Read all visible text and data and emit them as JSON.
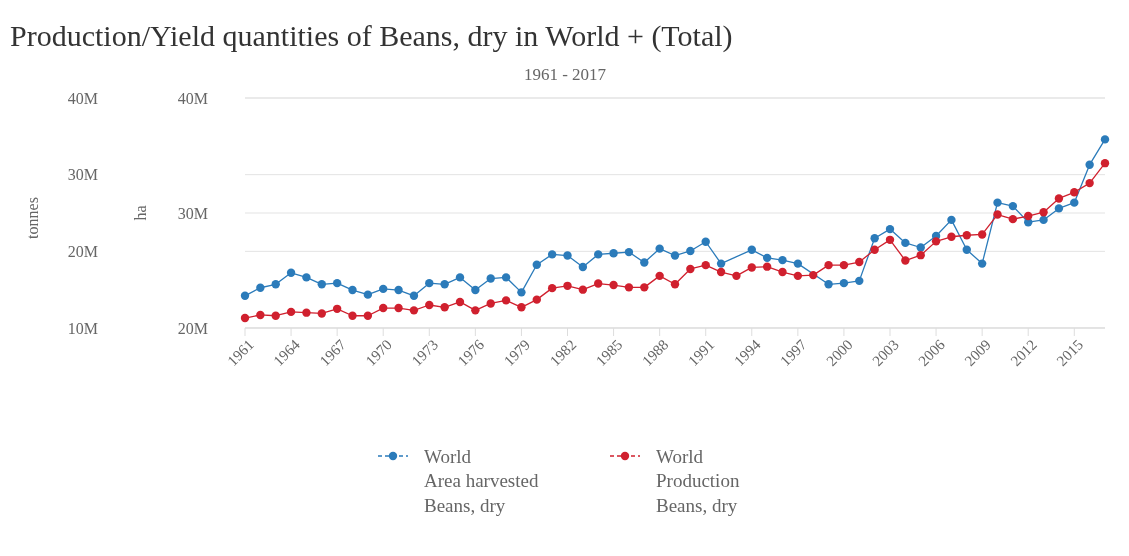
{
  "chart_data": {
    "type": "line",
    "title": "Production/Yield quantities of Beans, dry in World + (Total)",
    "subtitle": "1961 - 2017",
    "ylabel": "tonnes",
    "y2label": "ha",
    "x": [
      1961,
      1962,
      1963,
      1964,
      1965,
      1966,
      1967,
      1968,
      1969,
      1970,
      1971,
      1972,
      1973,
      1974,
      1975,
      1976,
      1977,
      1978,
      1979,
      1980,
      1981,
      1982,
      1983,
      1984,
      1985,
      1986,
      1987,
      1988,
      1989,
      1990,
      1991,
      1992,
      1993,
      1994,
      1995,
      1996,
      1997,
      1998,
      1999,
      2000,
      2001,
      2002,
      2003,
      2004,
      2005,
      2006,
      2007,
      2008,
      2009,
      2010,
      2011,
      2012,
      2013,
      2014,
      2015,
      2016,
      2017
    ],
    "xlim": [
      1961,
      2017
    ],
    "xticks": [
      1961,
      1964,
      1967,
      1970,
      1973,
      1976,
      1979,
      1982,
      1985,
      1988,
      1991,
      1994,
      1997,
      2000,
      2003,
      2006,
      2009,
      2012,
      2015
    ],
    "ylim": [
      10,
      40
    ],
    "yticks": [
      {
        "value": 10,
        "label": "10M"
      },
      {
        "value": 20,
        "label": "20M"
      },
      {
        "value": 30,
        "label": "30M"
      },
      {
        "value": 40,
        "label": "40M"
      }
    ],
    "y2lim": [
      20,
      40
    ],
    "y2ticks": [
      {
        "value": 20,
        "label": "20M"
      },
      {
        "value": 30,
        "label": "30M"
      },
      {
        "value": 40,
        "label": "40M"
      }
    ],
    "grid": true,
    "legend": "bottom",
    "marker": "circle",
    "line_style": "solid",
    "series": [
      {
        "name": "World\nArea harvested\nBeans, dry",
        "color": "#2b7bba",
        "axis": "y2",
        "values": [
          22.8,
          23.5,
          23.8,
          24.8,
          24.4,
          23.8,
          23.9,
          23.3,
          22.9,
          23.4,
          23.3,
          22.8,
          23.9,
          23.8,
          24.4,
          23.3,
          24.3,
          24.4,
          23.1,
          25.5,
          26.4,
          26.3,
          25.3,
          26.4,
          26.5,
          26.6,
          25.7,
          26.9,
          26.3,
          26.7,
          27.5,
          25.6,
          null,
          26.8,
          26.1,
          25.9,
          25.6,
          null,
          23.8,
          23.9,
          24.1,
          27.8,
          28.6,
          27.4,
          27.0,
          28.0,
          29.4,
          26.8,
          25.6,
          30.9,
          30.6,
          29.2,
          29.4,
          30.4,
          30.9,
          34.2,
          36.4
        ]
      },
      {
        "name": "World\nProduction\nBeans, dry",
        "color": "#d0202e",
        "axis": "y",
        "values": [
          11.3,
          11.7,
          11.6,
          12.1,
          12.0,
          11.9,
          12.5,
          11.6,
          11.6,
          12.6,
          12.6,
          12.3,
          13.0,
          12.7,
          13.4,
          12.3,
          13.2,
          13.6,
          12.7,
          13.7,
          15.2,
          15.5,
          15.0,
          15.8,
          15.6,
          15.3,
          15.3,
          16.8,
          15.7,
          17.7,
          18.2,
          17.3,
          16.8,
          17.9,
          18.0,
          17.3,
          16.8,
          16.9,
          18.2,
          18.2,
          18.6,
          20.2,
          21.5,
          18.8,
          19.5,
          21.3,
          21.9,
          22.1,
          22.2,
          24.8,
          24.2,
          24.6,
          25.1,
          26.9,
          27.7,
          28.9,
          31.5
        ]
      }
    ]
  }
}
